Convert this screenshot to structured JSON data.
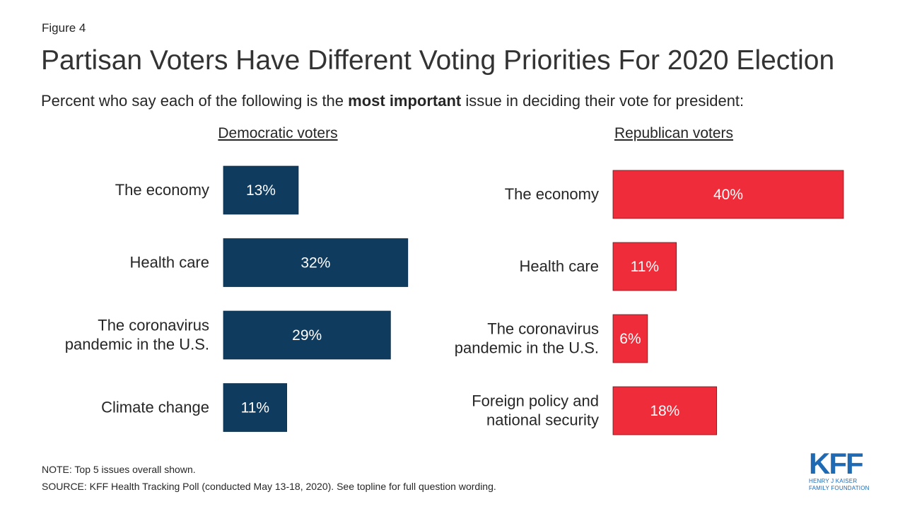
{
  "figure_label": "Figure 4",
  "title": "Partisan Voters Have Different Voting Priorities For 2020 Election",
  "subtitle": {
    "before": "Percent who say each of the following is the ",
    "bold": "most important",
    "after": " issue in deciding their vote for president:"
  },
  "colors": {
    "democratic": "#0f3b5f",
    "republican": "#ef2d3a",
    "logo": "#1f6ab3"
  },
  "chart_data": [
    {
      "type": "bar",
      "orientation": "horizontal",
      "title": "Democratic voters",
      "categories": [
        [
          "The economy"
        ],
        [
          "Health care"
        ],
        [
          "The coronavirus",
          "pandemic in the U.S."
        ],
        [
          "Climate change"
        ]
      ],
      "values": [
        13,
        32,
        29,
        11
      ],
      "value_labels": [
        "13%",
        "32%",
        "29%",
        "11%"
      ],
      "unit": "%",
      "color": "#0f3b5f"
    },
    {
      "type": "bar",
      "orientation": "horizontal",
      "title": "Republican voters",
      "categories": [
        [
          "The economy"
        ],
        [
          "Health care"
        ],
        [
          "The coronavirus",
          "pandemic in the U.S."
        ],
        [
          "Foreign policy and",
          "national security"
        ]
      ],
      "values": [
        40,
        11,
        6,
        18
      ],
      "value_labels": [
        "40%",
        "11%",
        "6%",
        "18%"
      ],
      "unit": "%",
      "color": "#ef2d3a"
    }
  ],
  "note": "NOTE: Top 5 issues overall shown.",
  "source": "SOURCE: KFF Health Tracking Poll (conducted May 13-18, 2020). See topline for full question wording.",
  "logo": {
    "name": "KFF",
    "line1": "HENRY J KAISER",
    "line2": "FAMILY FOUNDATION"
  }
}
